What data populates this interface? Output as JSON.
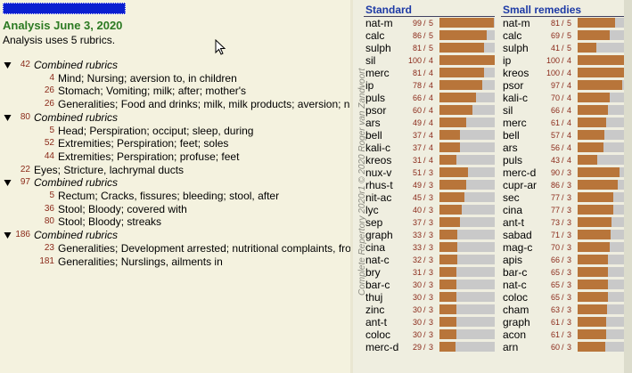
{
  "analysis": {
    "title": "Analysis June 3, 2020",
    "subtitle": "Analysis uses 5 rubrics.",
    "rubrics": [
      {
        "count": 42,
        "label": "Combined rubrics",
        "children": [
          {
            "count": 4,
            "label": "Mind; Nursing; aversion to, in children"
          },
          {
            "count": 26,
            "label": "Stomach; Vomiting; milk; after; mother's"
          },
          {
            "count": 26,
            "label": "Generalities; Food and drinks; milk, milk products; aversion; n"
          }
        ]
      },
      {
        "count": 80,
        "label": "Combined rubrics",
        "children": [
          {
            "count": 5,
            "label": "Head; Perspiration; occiput; sleep, during"
          },
          {
            "count": 52,
            "label": "Extremities; Perspiration; feet; soles"
          },
          {
            "count": 44,
            "label": "Extremities; Perspiration; profuse; feet"
          }
        ]
      },
      {
        "count": 22,
        "label": "Eyes; Stricture, lachrymal ducts"
      },
      {
        "count": 97,
        "label": "Combined rubrics",
        "children": [
          {
            "count": 5,
            "label": "Rectum; Cracks, fissures; bleeding; stool, after"
          },
          {
            "count": 36,
            "label": "Stool; Bloody; covered with"
          },
          {
            "count": 80,
            "label": "Stool; Bloody; streaks"
          }
        ]
      },
      {
        "count": 186,
        "label": "Combined rubrics",
        "children": [
          {
            "count": 23,
            "label": "Generalities; Development arrested; nutritional complaints, fro"
          },
          {
            "count": 181,
            "label": "Generalities; Nurslings, ailments in"
          }
        ]
      }
    ]
  },
  "copyright": "Complete Repertory 2020r1 © 2020 Roger van Zandvoort",
  "separator": "/",
  "results": [
    {
      "title": "Standard",
      "rows": [
        {
          "remedy": "nat-m",
          "score": 99,
          "rubrics": 5
        },
        {
          "remedy": "calc",
          "score": 86,
          "rubrics": 5
        },
        {
          "remedy": "sulph",
          "score": 81,
          "rubrics": 5
        },
        {
          "remedy": "sil",
          "score": 100,
          "rubrics": 4
        },
        {
          "remedy": "merc",
          "score": 81,
          "rubrics": 4
        },
        {
          "remedy": "ip",
          "score": 78,
          "rubrics": 4
        },
        {
          "remedy": "puls",
          "score": 66,
          "rubrics": 4
        },
        {
          "remedy": "psor",
          "score": 60,
          "rubrics": 4
        },
        {
          "remedy": "ars",
          "score": 49,
          "rubrics": 4
        },
        {
          "remedy": "bell",
          "score": 37,
          "rubrics": 4
        },
        {
          "remedy": "kali-c",
          "score": 37,
          "rubrics": 4
        },
        {
          "remedy": "kreos",
          "score": 31,
          "rubrics": 4
        },
        {
          "remedy": "nux-v",
          "score": 51,
          "rubrics": 3
        },
        {
          "remedy": "rhus-t",
          "score": 49,
          "rubrics": 3
        },
        {
          "remedy": "nit-ac",
          "score": 45,
          "rubrics": 3
        },
        {
          "remedy": "lyc",
          "score": 40,
          "rubrics": 3
        },
        {
          "remedy": "sep",
          "score": 37,
          "rubrics": 3
        },
        {
          "remedy": "graph",
          "score": 33,
          "rubrics": 3
        },
        {
          "remedy": "cina",
          "score": 33,
          "rubrics": 3
        },
        {
          "remedy": "nat-c",
          "score": 32,
          "rubrics": 3
        },
        {
          "remedy": "bry",
          "score": 31,
          "rubrics": 3
        },
        {
          "remedy": "bar-c",
          "score": 30,
          "rubrics": 3
        },
        {
          "remedy": "thuj",
          "score": 30,
          "rubrics": 3
        },
        {
          "remedy": "zinc",
          "score": 30,
          "rubrics": 3
        },
        {
          "remedy": "ant-t",
          "score": 30,
          "rubrics": 3
        },
        {
          "remedy": "coloc",
          "score": 30,
          "rubrics": 3
        },
        {
          "remedy": "merc-d",
          "score": 29,
          "rubrics": 3
        }
      ]
    },
    {
      "title": "Small remedies",
      "rows": [
        {
          "remedy": "nat-m",
          "score": 81,
          "rubrics": 5
        },
        {
          "remedy": "calc",
          "score": 69,
          "rubrics": 5
        },
        {
          "remedy": "sulph",
          "score": 41,
          "rubrics": 5
        },
        {
          "remedy": "ip",
          "score": 100,
          "rubrics": 4
        },
        {
          "remedy": "kreos",
          "score": 100,
          "rubrics": 4
        },
        {
          "remedy": "psor",
          "score": 97,
          "rubrics": 4
        },
        {
          "remedy": "kali-c",
          "score": 70,
          "rubrics": 4
        },
        {
          "remedy": "sil",
          "score": 66,
          "rubrics": 4
        },
        {
          "remedy": "merc",
          "score": 61,
          "rubrics": 4
        },
        {
          "remedy": "bell",
          "score": 57,
          "rubrics": 4
        },
        {
          "remedy": "ars",
          "score": 56,
          "rubrics": 4
        },
        {
          "remedy": "puls",
          "score": 43,
          "rubrics": 4
        },
        {
          "remedy": "merc-d",
          "score": 90,
          "rubrics": 3
        },
        {
          "remedy": "cupr-ar",
          "score": 86,
          "rubrics": 3
        },
        {
          "remedy": "sec",
          "score": 77,
          "rubrics": 3
        },
        {
          "remedy": "cina",
          "score": 77,
          "rubrics": 3
        },
        {
          "remedy": "ant-t",
          "score": 73,
          "rubrics": 3
        },
        {
          "remedy": "sabad",
          "score": 71,
          "rubrics": 3
        },
        {
          "remedy": "mag-c",
          "score": 70,
          "rubrics": 3
        },
        {
          "remedy": "apis",
          "score": 66,
          "rubrics": 3
        },
        {
          "remedy": "bar-c",
          "score": 65,
          "rubrics": 3
        },
        {
          "remedy": "nat-c",
          "score": 65,
          "rubrics": 3
        },
        {
          "remedy": "coloc",
          "score": 65,
          "rubrics": 3
        },
        {
          "remedy": "cham",
          "score": 63,
          "rubrics": 3
        },
        {
          "remedy": "graph",
          "score": 61,
          "rubrics": 3
        },
        {
          "remedy": "acon",
          "score": 61,
          "rubrics": 3
        },
        {
          "remedy": "arn",
          "score": 60,
          "rubrics": 3
        }
      ]
    }
  ]
}
